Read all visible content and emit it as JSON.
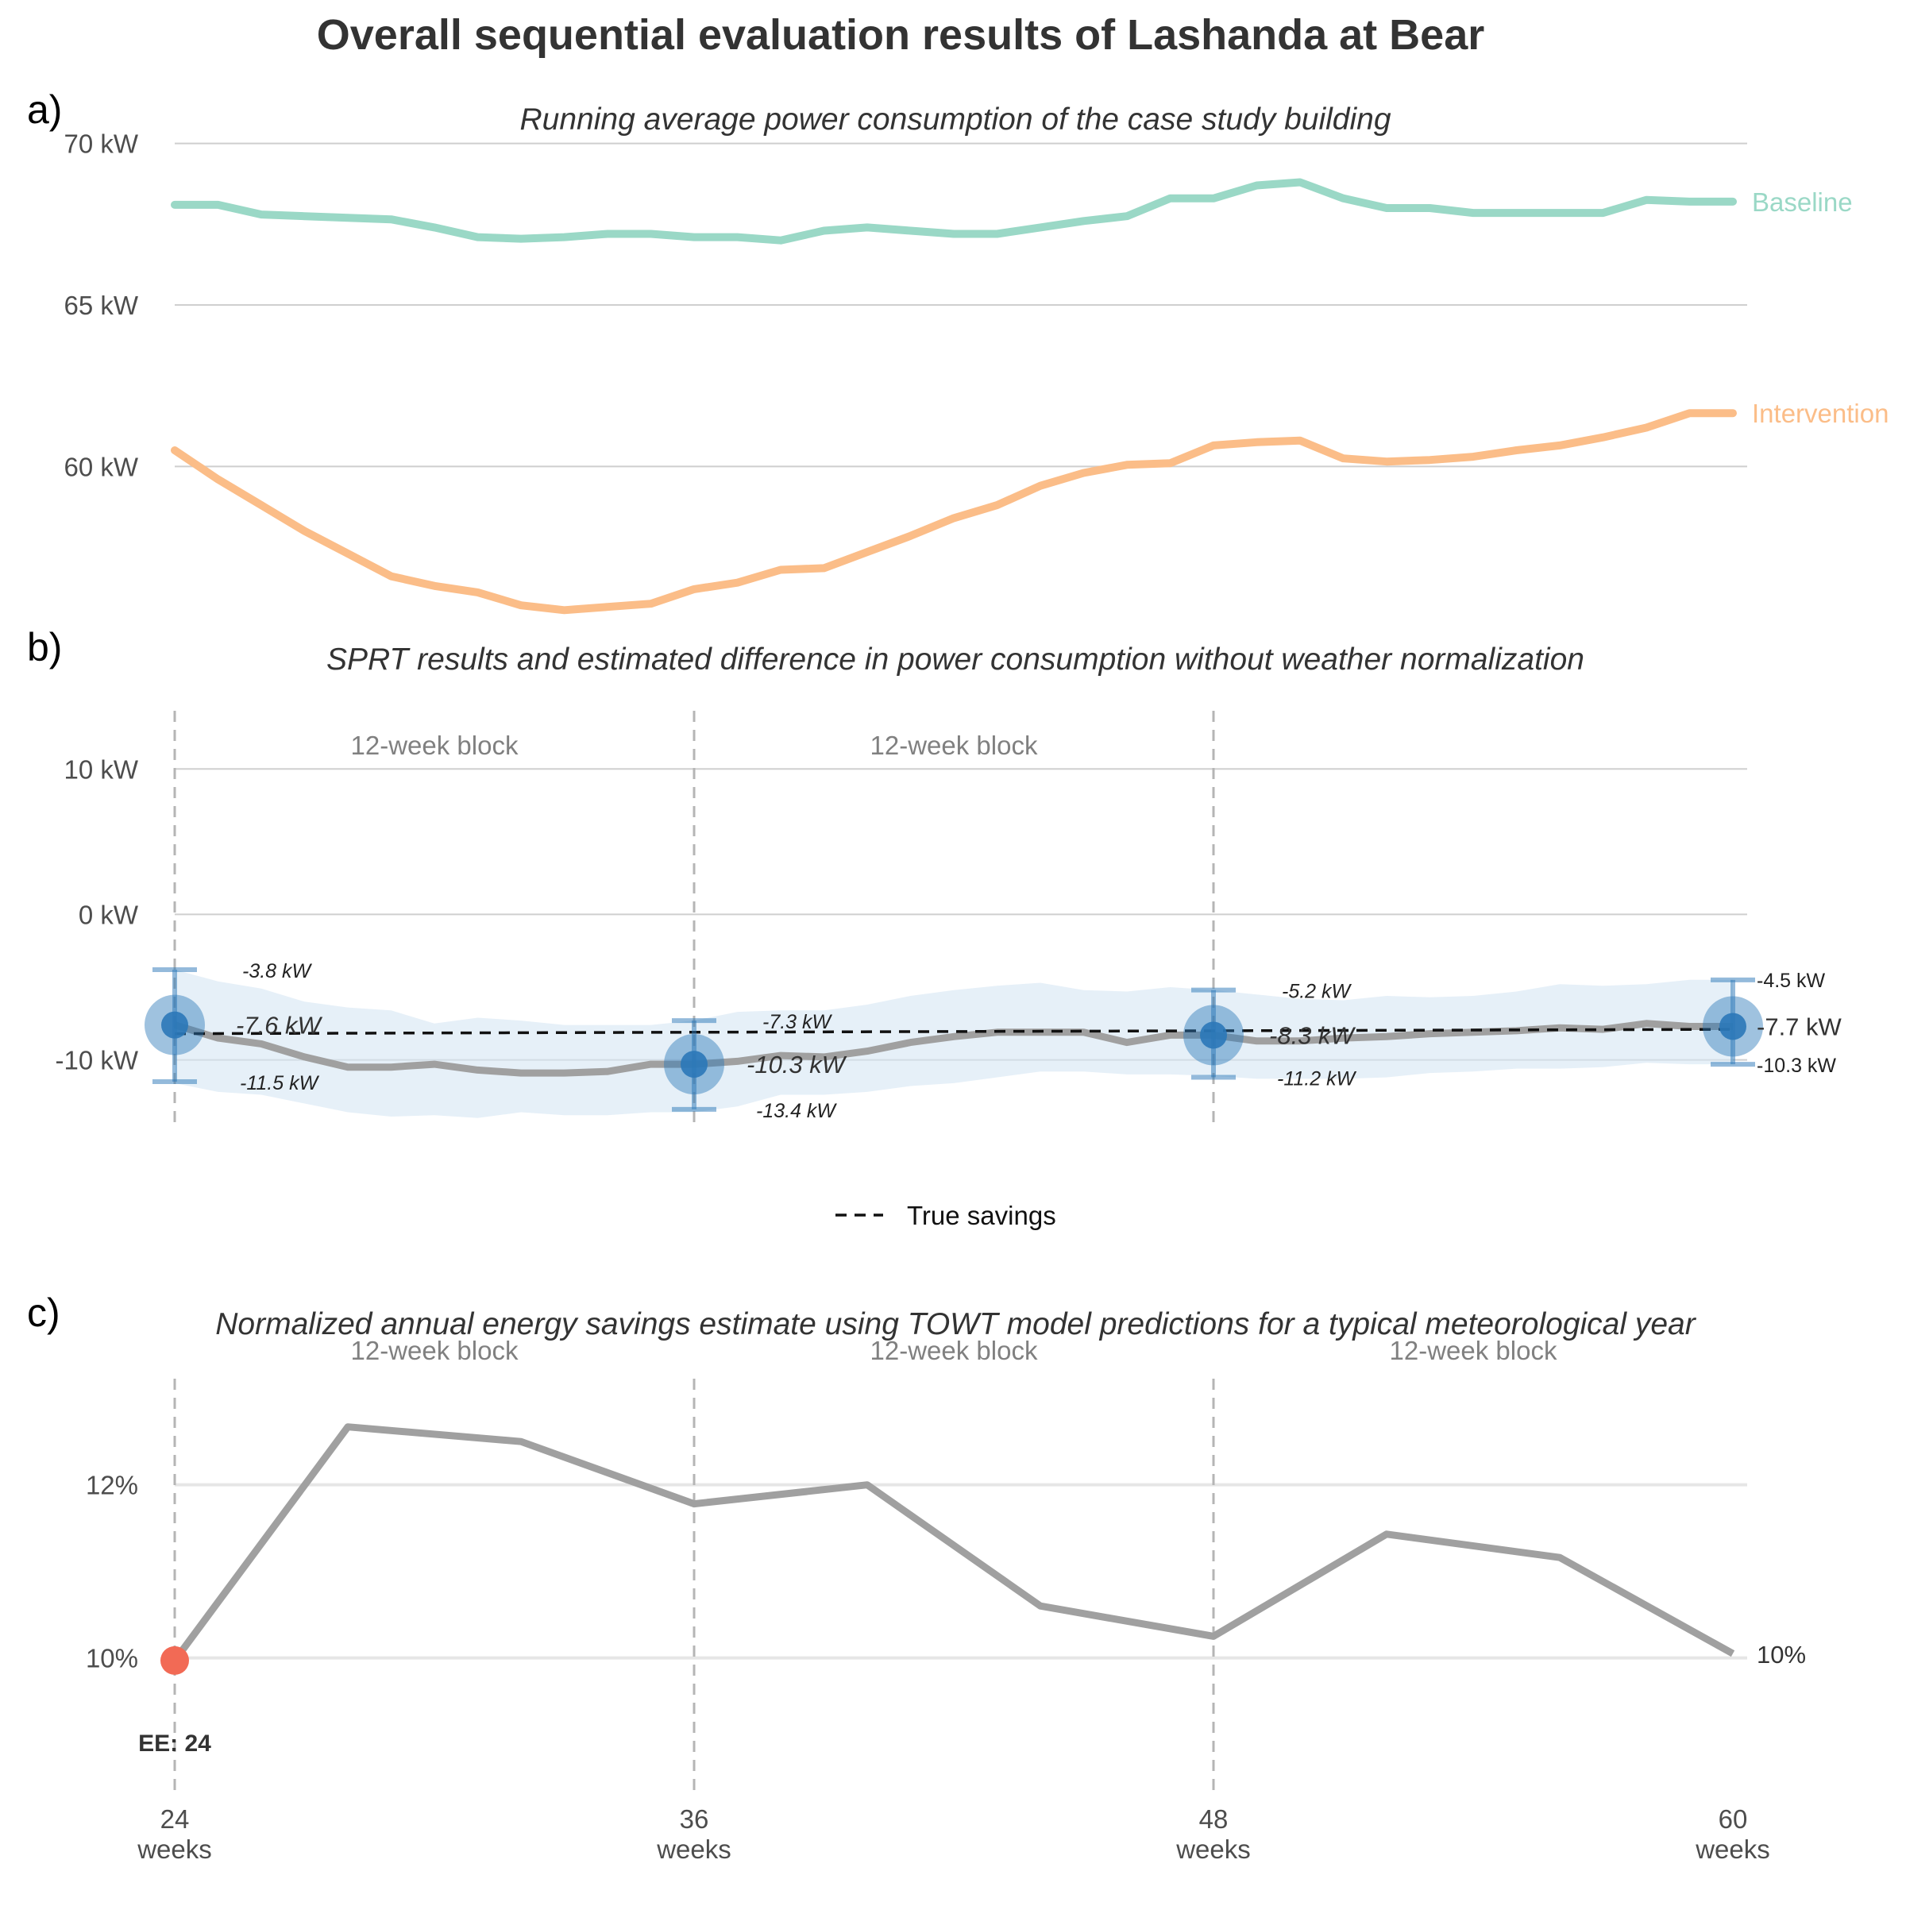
{
  "title": "Overall sequential evaluation results of Lashanda at Bear",
  "colors": {
    "baseline": "#9ad8c6",
    "intervention": "#fbbd88",
    "difference": "#a0a0a0",
    "sprt_point": "#2b78b8",
    "ci_band": "#d6e6f4",
    "true_savings": "#111111",
    "ee_point": "#f26a55",
    "grid": "#cfcfcf",
    "block_line": "#b5b5b5"
  },
  "chart_data": [
    {
      "panel": "a)",
      "type": "line",
      "title": "Running average power consumption of the case study building",
      "x_unit": "weeks",
      "xlim": [
        24,
        60
      ],
      "ylim": [
        56,
        71
      ],
      "yticks": [
        {
          "value": 60,
          "label": "60 kW"
        },
        {
          "value": 65,
          "label": "65 kW"
        },
        {
          "value": 70,
          "label": "70 kW"
        }
      ],
      "x": [
        24,
        25,
        26,
        27,
        28,
        29,
        30,
        31,
        32,
        33,
        34,
        35,
        36,
        37,
        38,
        39,
        40,
        41,
        42,
        43,
        44,
        45,
        46,
        47,
        48,
        49,
        50,
        51,
        52,
        53,
        54,
        55,
        56,
        57,
        58,
        59,
        60
      ],
      "series": [
        {
          "name": "Baseline",
          "values": [
            68.1,
            68.1,
            67.8,
            67.75,
            67.7,
            67.65,
            67.4,
            67.1,
            67.05,
            67.1,
            67.2,
            67.2,
            67.1,
            67.1,
            67.0,
            67.3,
            67.4,
            67.3,
            67.2,
            67.2,
            67.4,
            67.6,
            67.75,
            68.3,
            68.3,
            68.7,
            68.8,
            68.3,
            68.0,
            68.0,
            67.85,
            67.85,
            67.85,
            67.85,
            68.25,
            68.2,
            68.2
          ]
        },
        {
          "name": "Intervention",
          "values": [
            60.5,
            59.6,
            58.8,
            58.0,
            57.3,
            56.6,
            56.3,
            56.1,
            55.7,
            55.55,
            55.65,
            55.75,
            56.2,
            56.4,
            56.8,
            56.85,
            57.35,
            57.85,
            58.4,
            58.8,
            59.4,
            59.8,
            60.05,
            60.1,
            60.65,
            60.75,
            60.8,
            60.25,
            60.15,
            60.2,
            60.3,
            60.5,
            60.65,
            60.9,
            61.2,
            61.65,
            61.65
          ]
        }
      ]
    },
    {
      "panel": "b)",
      "type": "line",
      "title": "SPRT results and estimated difference in power consumption without weather normalization",
      "x_unit": "weeks",
      "xlim": [
        24,
        60
      ],
      "ylim": [
        -14.5,
        14
      ],
      "yticks": [
        {
          "value": -10,
          "label": "-10 kW"
        },
        {
          "value": 0,
          "label": "0 kW"
        },
        {
          "value": 10,
          "label": "10 kW"
        }
      ],
      "block_boundaries": [
        24,
        36,
        48
      ],
      "block_labels": [
        {
          "x": 30,
          "text": "12-week block"
        },
        {
          "x": 42,
          "text": "12-week block"
        }
      ],
      "true_savings": {
        "name": "True savings",
        "values": [
          -8.2,
          -7.9
        ]
      },
      "estimate": {
        "x": [
          24,
          25,
          26,
          27,
          28,
          29,
          30,
          31,
          32,
          33,
          34,
          35,
          36,
          37,
          38,
          39,
          40,
          41,
          42,
          43,
          44,
          45,
          46,
          47,
          48,
          49,
          50,
          51,
          52,
          53,
          54,
          55,
          56,
          57,
          58,
          59,
          60
        ],
        "values": [
          -7.6,
          -8.5,
          -8.9,
          -9.8,
          -10.5,
          -10.5,
          -10.3,
          -10.7,
          -10.9,
          -10.9,
          -10.8,
          -10.3,
          -10.3,
          -10.1,
          -9.7,
          -9.8,
          -9.4,
          -8.8,
          -8.4,
          -8.1,
          -8.1,
          -8.1,
          -8.8,
          -8.3,
          -8.3,
          -8.7,
          -8.7,
          -8.5,
          -8.4,
          -8.2,
          -8.1,
          -8.0,
          -7.8,
          -7.9,
          -7.5,
          -7.7,
          -7.7
        ],
        "band_lower": [
          -11.6,
          -12.2,
          -12.4,
          -13.0,
          -13.6,
          -13.9,
          -13.8,
          -14.0,
          -13.6,
          -13.8,
          -13.8,
          -13.6,
          -13.6,
          -13.2,
          -12.4,
          -12.4,
          -12.2,
          -11.8,
          -11.6,
          -11.2,
          -10.8,
          -10.8,
          -11.0,
          -11.0,
          -11.1,
          -11.3,
          -11.3,
          -11.3,
          -11.2,
          -10.9,
          -10.8,
          -10.6,
          -10.6,
          -10.5,
          -10.2,
          -10.3,
          -10.3
        ],
        "band_upper": [
          -3.8,
          -4.6,
          -5.1,
          -6.0,
          -6.4,
          -6.6,
          -7.5,
          -7.1,
          -7.3,
          -7.6,
          -7.6,
          -7.6,
          -7.3,
          -6.7,
          -6.6,
          -6.6,
          -6.2,
          -5.6,
          -5.2,
          -4.9,
          -4.7,
          -5.2,
          -5.3,
          -5.0,
          -5.2,
          -5.5,
          -5.8,
          -5.9,
          -5.6,
          -5.7,
          -5.6,
          -5.3,
          -4.8,
          -4.9,
          -4.8,
          -4.5,
          -4.5
        ]
      },
      "sprt_points": [
        {
          "x": 24,
          "estimate": -7.6,
          "lower": -11.5,
          "upper": -3.8,
          "estimate_label": "-7.6 kW",
          "lower_label": "-11.5 kW",
          "upper_label": "-3.8 kW"
        },
        {
          "x": 36,
          "estimate": -10.3,
          "lower": -13.4,
          "upper": -7.3,
          "estimate_label": "-10.3 kW",
          "lower_label": "-13.4 kW",
          "upper_label": "-7.3 kW"
        },
        {
          "x": 48,
          "estimate": -8.3,
          "lower": -11.2,
          "upper": -5.2,
          "estimate_label": "-8.3 kW",
          "lower_label": "-11.2 kW",
          "upper_label": "-5.2 kW"
        },
        {
          "x": 60,
          "estimate": -7.7,
          "lower": -10.3,
          "upper": -4.5,
          "estimate_label": "-7.7 kW",
          "lower_label": "-10.3 kW",
          "upper_label": "-4.5 kW"
        }
      ],
      "legend": {
        "placement": "bottom",
        "entries": [
          "True savings"
        ]
      }
    },
    {
      "panel": "c)",
      "type": "line",
      "title": "Normalized annual energy savings estimate using TOWT model predictions for a typical meteorological year",
      "x_unit": "weeks",
      "xlim": [
        24,
        60
      ],
      "ylim": [
        8.4,
        13.3
      ],
      "yticks": [
        {
          "value": 10,
          "label": "10%"
        },
        {
          "value": 12,
          "label": "12%"
        }
      ],
      "xticks": [
        {
          "value": 24,
          "number": "24",
          "unit": "weeks"
        },
        {
          "value": 36,
          "number": "36",
          "unit": "weeks"
        },
        {
          "value": 48,
          "number": "48",
          "unit": "weeks"
        },
        {
          "value": 60,
          "number": "60",
          "unit": "weeks"
        }
      ],
      "block_boundaries": [
        24,
        36,
        48
      ],
      "block_labels": [
        {
          "x": 30,
          "text": "12-week block"
        },
        {
          "x": 42,
          "text": "12-week block"
        },
        {
          "x": 54,
          "text": "12-week block"
        }
      ],
      "x": [
        24,
        28,
        32,
        36,
        40,
        44,
        48,
        52,
        56,
        60
      ],
      "values": [
        9.97,
        12.67,
        12.5,
        11.78,
        12.0,
        10.6,
        10.25,
        11.43,
        11.16,
        10.05
      ],
      "end_label": "10%",
      "ee_point": {
        "x": 24,
        "value": 9.97,
        "label": "EE: 24"
      }
    }
  ]
}
